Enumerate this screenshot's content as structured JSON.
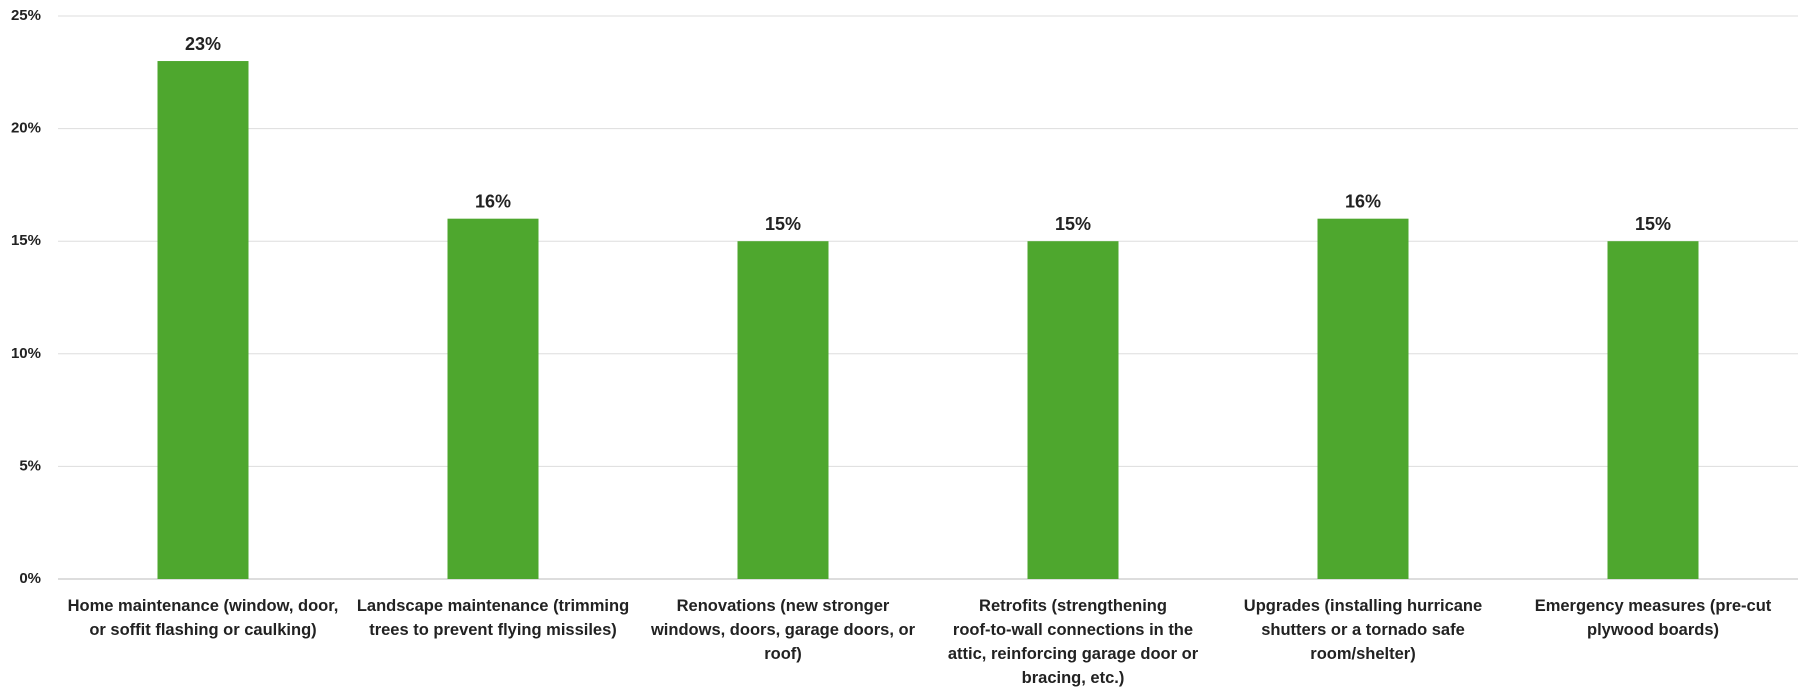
{
  "chart_data": {
    "type": "bar",
    "categories": [
      "Home maintenance (window, door,\nor soffit flashing or caulking)",
      "Landscape maintenance (trimming\ntrees to prevent flying missiles)",
      "Renovations (new stronger\nwindows, doors, garage doors, or\nroof)",
      "Retrofits (strengthening\nroof-to-wall connections in the\nattic, reinforcing garage door or\nbracing, etc.)",
      "Upgrades (installing hurricane\nshutters or a tornado safe\nroom/shelter)",
      "Emergency measures (pre-cut\nplywood boards)"
    ],
    "values": [
      23,
      16,
      15,
      15,
      16,
      15
    ],
    "value_labels": [
      "23%",
      "16%",
      "15%",
      "15%",
      "16%",
      "15%"
    ],
    "color": "#4ea72e",
    "ylim": [
      0,
      25
    ],
    "yticks": [
      {
        "value": 0,
        "label": "0%"
      },
      {
        "value": 5,
        "label": "5%"
      },
      {
        "value": 10,
        "label": "10%"
      },
      {
        "value": 15,
        "label": "15%"
      },
      {
        "value": 20,
        "label": "20%"
      },
      {
        "value": 25,
        "label": "25%"
      }
    ],
    "grid": true
  }
}
